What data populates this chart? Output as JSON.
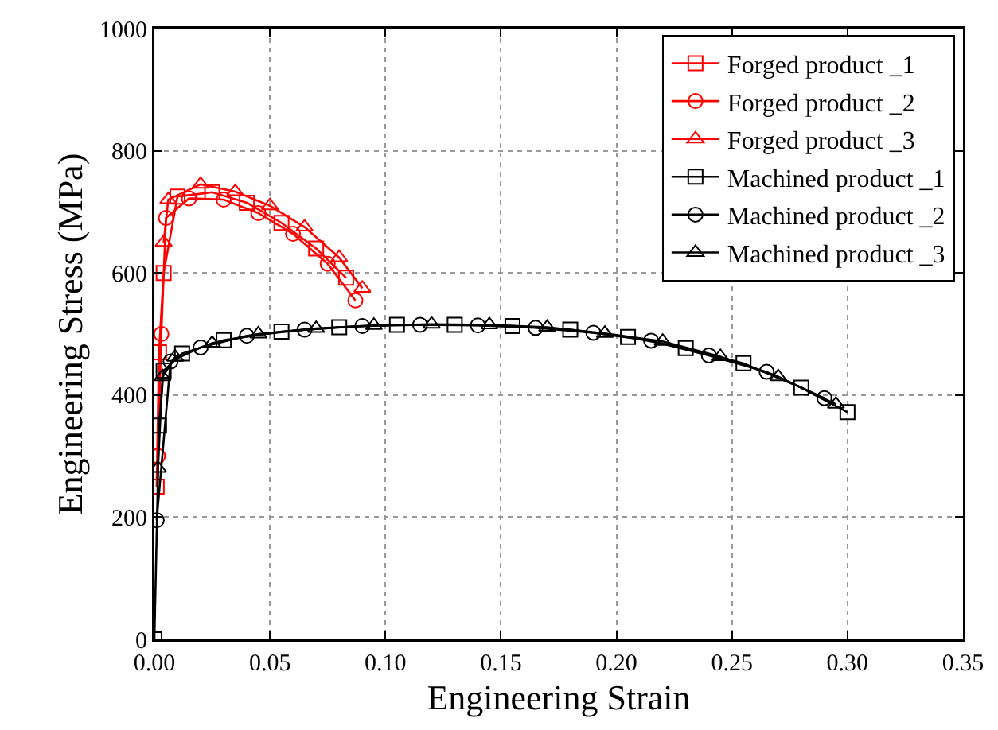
{
  "chart_data": {
    "type": "line",
    "xlabel": "Engineering Strain",
    "ylabel": "Engineering Stress (MPa)",
    "xlim": [
      0,
      0.35
    ],
    "xticks": [
      {
        "value": 0,
        "label": "0.00"
      },
      {
        "value": 0.05,
        "label": "0.05"
      },
      {
        "value": 0.1,
        "label": "0.10"
      },
      {
        "value": 0.15,
        "label": "0.15"
      },
      {
        "value": 0.2,
        "label": "0.20"
      },
      {
        "value": 0.25,
        "label": "0.25"
      },
      {
        "value": 0.3,
        "label": "0.30"
      },
      {
        "value": 0.35,
        "label": "0.35"
      }
    ],
    "ylim": [
      0,
      1000
    ],
    "yticks": [
      0,
      200,
      400,
      600,
      800,
      1000
    ],
    "grid": true,
    "legend": "top right",
    "line_style": "solid",
    "series": [
      {
        "name": "Forged product _1",
        "color": "#ff0000",
        "marker": "square",
        "x": [
          0.001,
          0.002,
          0.004,
          0.01,
          0.025,
          0.04,
          0.055,
          0.07,
          0.083
        ],
        "values": [
          250,
          470,
          600,
          725,
          732,
          715,
          682,
          640,
          592
        ]
      },
      {
        "name": "Forged product _2",
        "color": "#ff0000",
        "marker": "circle",
        "x": [
          0.0015,
          0.003,
          0.005,
          0.015,
          0.03,
          0.045,
          0.06,
          0.075,
          0.087
        ],
        "values": [
          300,
          500,
          690,
          722,
          720,
          698,
          664,
          615,
          555
        ]
      },
      {
        "name": "Forged product _3",
        "color": "#ff0000",
        "marker": "triangle",
        "x": [
          0.004,
          0.006,
          0.02,
          0.035,
          0.05,
          0.065,
          0.08,
          0.09
        ],
        "values": [
          650,
          720,
          745,
          733,
          710,
          675,
          625,
          575
        ]
      },
      {
        "name": "Machined product _1",
        "color": "#000000",
        "marker": "square",
        "x": [
          0,
          0.002,
          0.004,
          0.012,
          0.03,
          0.055,
          0.08,
          0.105,
          0.13,
          0.155,
          0.18,
          0.205,
          0.23,
          0.255,
          0.28,
          0.3
        ],
        "values": [
          0,
          350,
          440,
          468,
          490,
          504,
          511,
          515,
          515,
          513,
          507,
          495,
          477,
          452,
          412,
          372
        ]
      },
      {
        "name": "Machined product _2",
        "color": "#000000",
        "marker": "circle",
        "x": [
          0.001,
          0.007,
          0.02,
          0.04,
          0.065,
          0.09,
          0.115,
          0.14,
          0.165,
          0.19,
          0.215,
          0.24,
          0.265,
          0.29
        ],
        "values": [
          195,
          455,
          478,
          497,
          507,
          513,
          515,
          514,
          510,
          502,
          489,
          465,
          438,
          395
        ]
      },
      {
        "name": "Machined product _3",
        "color": "#000000",
        "marker": "triangle",
        "x": [
          0.0015,
          0.0035,
          0.009,
          0.025,
          0.045,
          0.07,
          0.095,
          0.12,
          0.145,
          0.17,
          0.195,
          0.22,
          0.245,
          0.27,
          0.295
        ],
        "values": [
          280,
          430,
          462,
          485,
          500,
          509,
          514,
          516,
          515,
          511,
          501,
          488,
          463,
          430,
          385
        ]
      }
    ]
  }
}
